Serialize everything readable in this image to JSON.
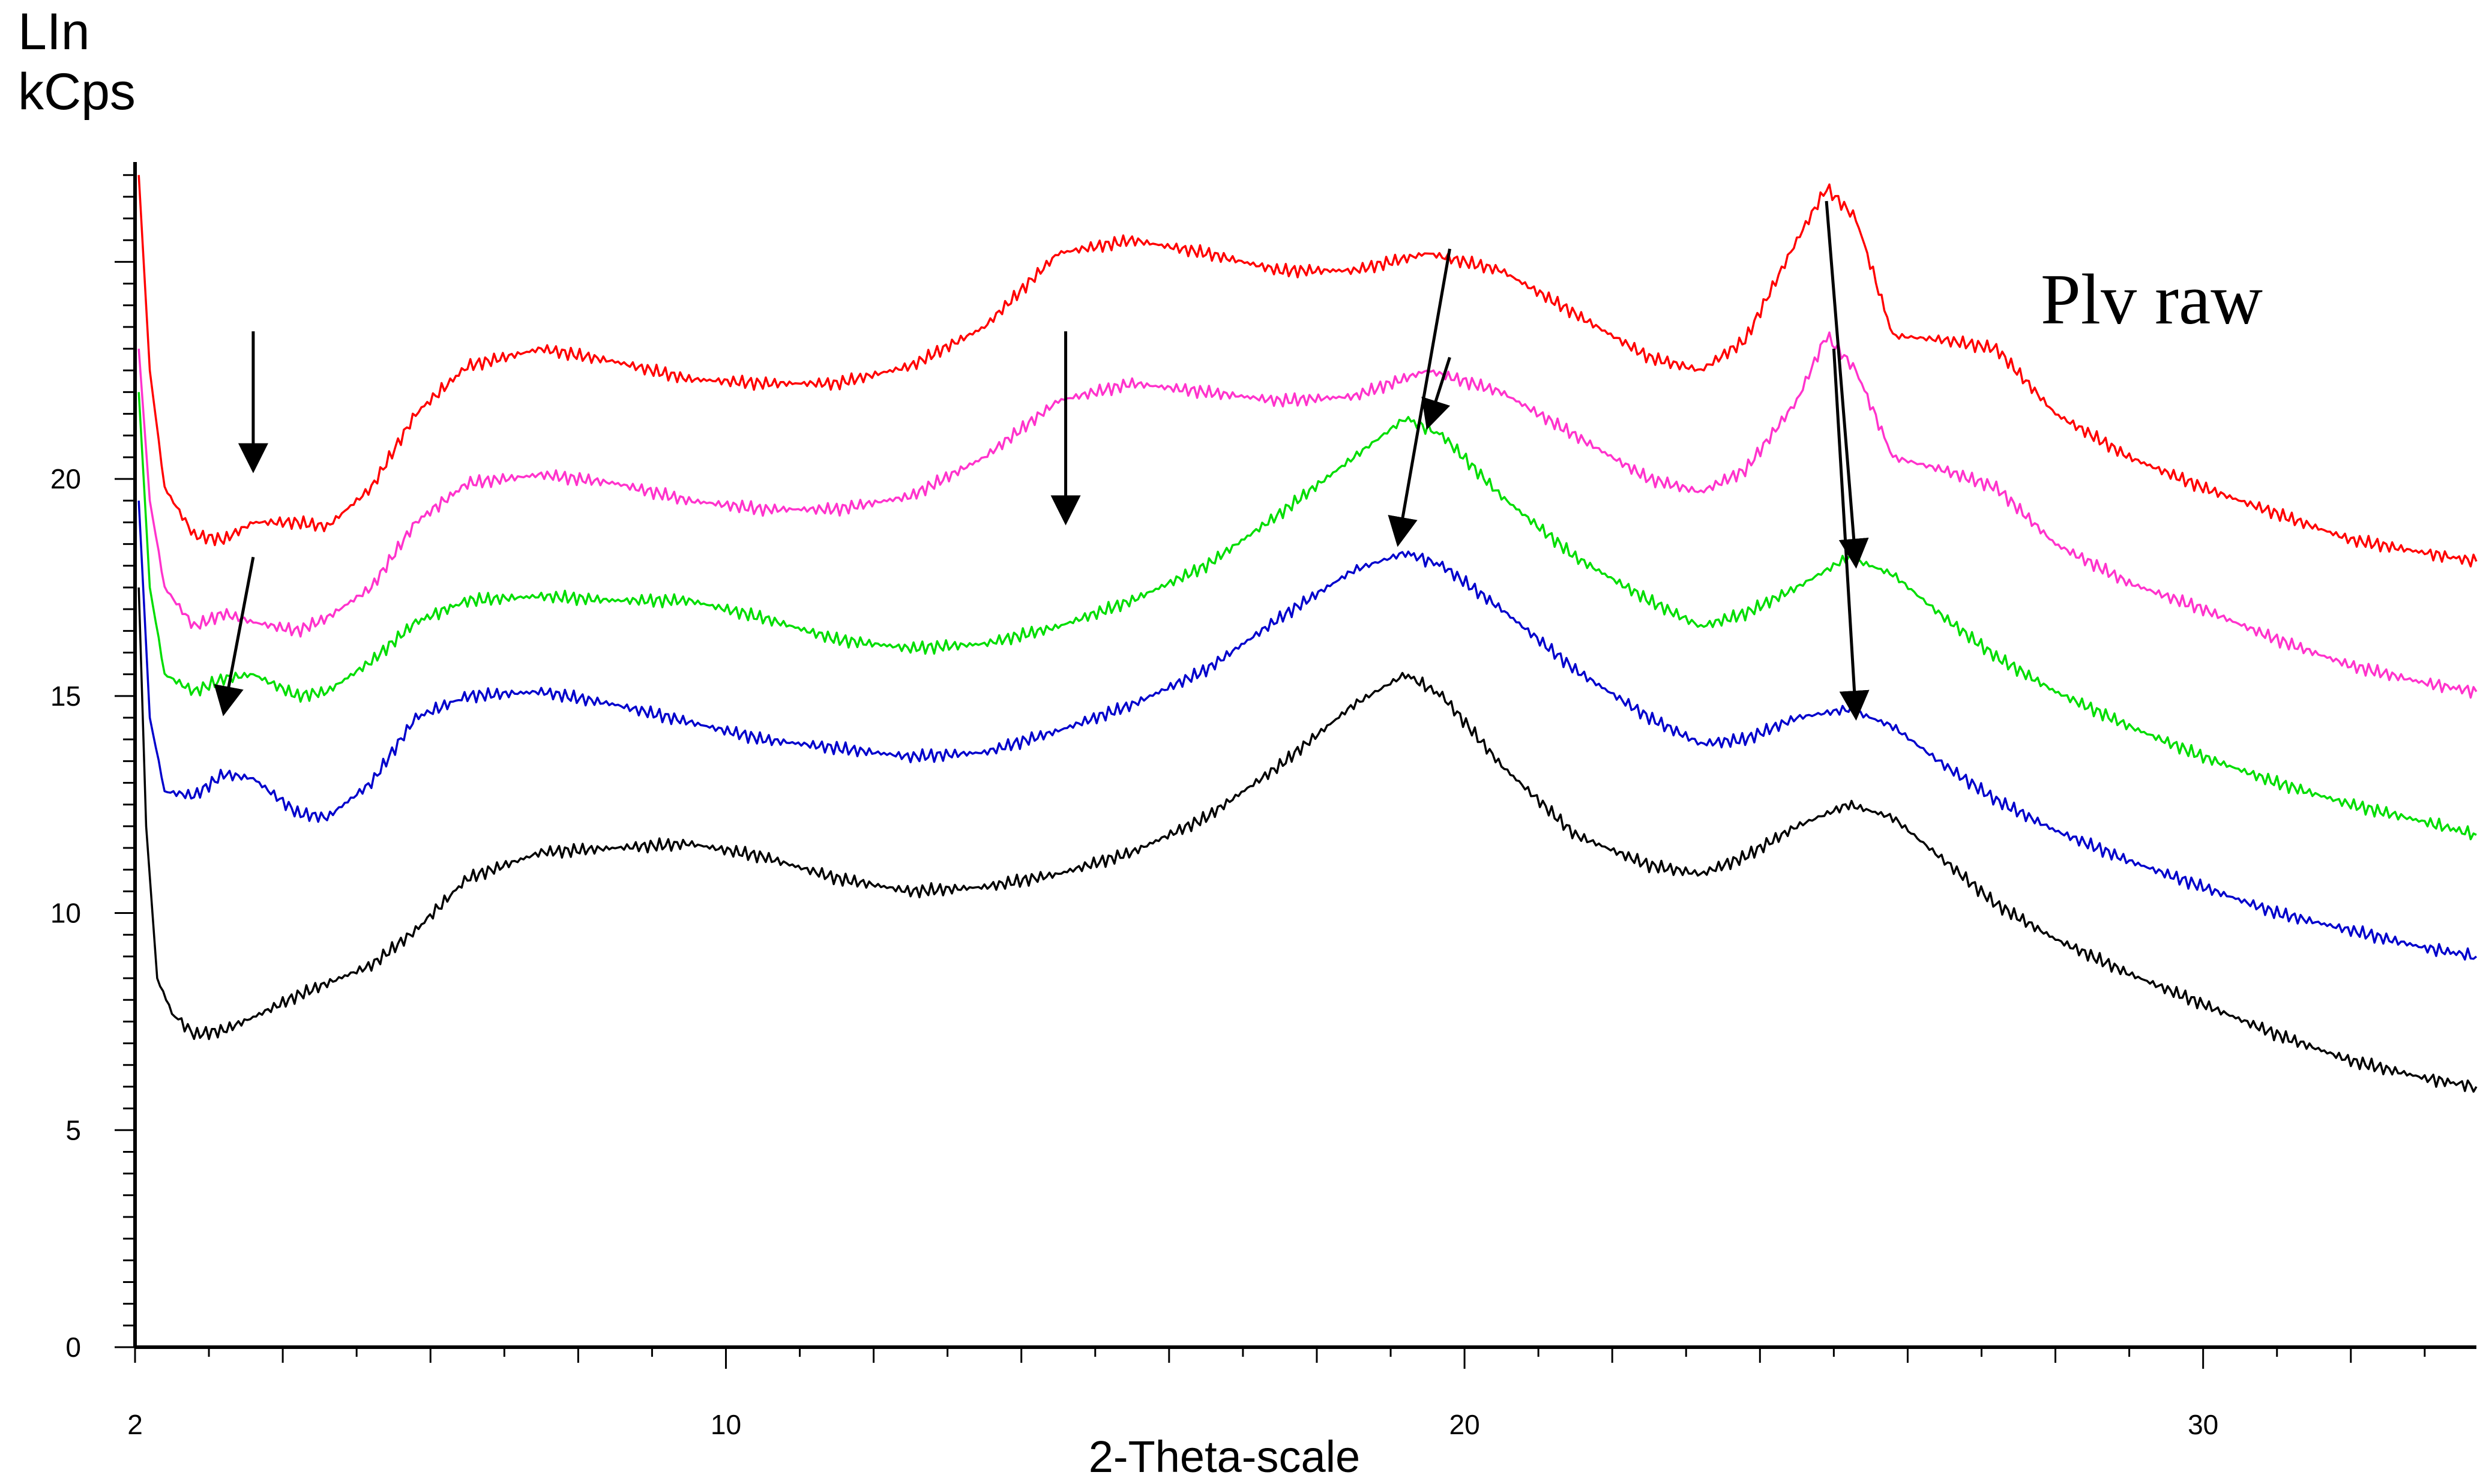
{
  "chart_data": {
    "type": "line",
    "ylabel": [
      "LIn",
      "kCps"
    ],
    "xlabel": "2-Theta-scale",
    "annotation": "Plv raw",
    "xlim": [
      2,
      33.7
    ],
    "ylim": [
      0,
      27.3
    ],
    "xticks": [
      2,
      10,
      20,
      30
    ],
    "yticks": [
      0,
      5,
      10,
      15,
      20
    ],
    "series": [
      {
        "color": "#ff0000",
        "points": [
          [
            2.05,
            27.0
          ],
          [
            2.2,
            22.5
          ],
          [
            2.4,
            19.8
          ],
          [
            2.8,
            18.7
          ],
          [
            3.2,
            18.6
          ],
          [
            3.6,
            19.0
          ],
          [
            4.2,
            19.0
          ],
          [
            4.6,
            18.9
          ],
          [
            5.2,
            19.8
          ],
          [
            5.8,
            21.5
          ],
          [
            6.5,
            22.6
          ],
          [
            7.5,
            23.0
          ],
          [
            8.5,
            22.7
          ],
          [
            9.5,
            22.3
          ],
          [
            10.5,
            22.2
          ],
          [
            11.5,
            22.2
          ],
          [
            12.5,
            22.6
          ],
          [
            13.5,
            23.5
          ],
          [
            14.5,
            25.2
          ],
          [
            15.5,
            25.5
          ],
          [
            16.5,
            25.2
          ],
          [
            17.5,
            24.8
          ],
          [
            18.5,
            24.8
          ],
          [
            19.5,
            25.2
          ],
          [
            20.5,
            24.8
          ],
          [
            21.5,
            23.8
          ],
          [
            22.5,
            22.8
          ],
          [
            23.2,
            22.5
          ],
          [
            23.8,
            23.2
          ],
          [
            24.5,
            25.5
          ],
          [
            24.9,
            26.7
          ],
          [
            25.3,
            26.0
          ],
          [
            25.8,
            23.3
          ],
          [
            26.5,
            23.2
          ],
          [
            27.2,
            23.0
          ],
          [
            28.0,
            21.5
          ],
          [
            29.0,
            20.5
          ],
          [
            30.0,
            19.8
          ],
          [
            31.0,
            19.2
          ],
          [
            32.0,
            18.6
          ],
          [
            33.0,
            18.3
          ],
          [
            33.7,
            18.1
          ]
        ]
      },
      {
        "color": "#ff33cc",
        "points": [
          [
            2.05,
            23.0
          ],
          [
            2.2,
            19.5
          ],
          [
            2.4,
            17.5
          ],
          [
            2.8,
            16.6
          ],
          [
            3.2,
            16.9
          ],
          [
            3.6,
            16.7
          ],
          [
            4.2,
            16.5
          ],
          [
            4.6,
            16.8
          ],
          [
            5.2,
            17.5
          ],
          [
            5.8,
            19.0
          ],
          [
            6.5,
            19.9
          ],
          [
            7.5,
            20.1
          ],
          [
            8.5,
            19.9
          ],
          [
            9.5,
            19.5
          ],
          [
            10.5,
            19.3
          ],
          [
            11.5,
            19.3
          ],
          [
            12.5,
            19.6
          ],
          [
            13.5,
            20.5
          ],
          [
            14.5,
            21.8
          ],
          [
            15.5,
            22.2
          ],
          [
            16.5,
            22.0
          ],
          [
            17.5,
            21.8
          ],
          [
            18.5,
            21.9
          ],
          [
            19.5,
            22.5
          ],
          [
            20.5,
            22.0
          ],
          [
            21.5,
            21.0
          ],
          [
            22.5,
            20.0
          ],
          [
            23.2,
            19.7
          ],
          [
            23.8,
            20.2
          ],
          [
            24.5,
            21.8
          ],
          [
            24.9,
            23.3
          ],
          [
            25.3,
            22.5
          ],
          [
            25.8,
            20.5
          ],
          [
            26.5,
            20.2
          ],
          [
            27.2,
            19.8
          ],
          [
            28.0,
            18.5
          ],
          [
            29.0,
            17.6
          ],
          [
            30.0,
            17.0
          ],
          [
            31.0,
            16.3
          ],
          [
            32.0,
            15.7
          ],
          [
            33.0,
            15.3
          ],
          [
            33.7,
            15.1
          ]
        ]
      },
      {
        "color": "#00dd00",
        "points": [
          [
            2.05,
            22.0
          ],
          [
            2.2,
            17.5
          ],
          [
            2.4,
            15.5
          ],
          [
            2.8,
            15.1
          ],
          [
            3.2,
            15.4
          ],
          [
            3.6,
            15.5
          ],
          [
            4.2,
            15.0
          ],
          [
            4.6,
            15.1
          ],
          [
            5.2,
            15.8
          ],
          [
            5.8,
            16.7
          ],
          [
            6.5,
            17.2
          ],
          [
            7.5,
            17.3
          ],
          [
            8.5,
            17.2
          ],
          [
            9.5,
            17.2
          ],
          [
            10.5,
            16.8
          ],
          [
            11.5,
            16.3
          ],
          [
            12.5,
            16.1
          ],
          [
            13.5,
            16.2
          ],
          [
            14.5,
            16.6
          ],
          [
            15.5,
            17.2
          ],
          [
            16.5,
            18.0
          ],
          [
            17.5,
            19.2
          ],
          [
            18.5,
            20.5
          ],
          [
            19.2,
            21.4
          ],
          [
            19.7,
            21.0
          ],
          [
            20.5,
            19.6
          ],
          [
            21.5,
            18.2
          ],
          [
            22.5,
            17.2
          ],
          [
            23.2,
            16.6
          ],
          [
            23.8,
            16.9
          ],
          [
            24.5,
            17.5
          ],
          [
            25.2,
            18.2
          ],
          [
            25.8,
            17.8
          ],
          [
            26.5,
            16.8
          ],
          [
            27.2,
            15.9
          ],
          [
            28.0,
            15.1
          ],
          [
            29.0,
            14.3
          ],
          [
            30.0,
            13.6
          ],
          [
            31.0,
            13.0
          ],
          [
            32.0,
            12.5
          ],
          [
            33.0,
            12.1
          ],
          [
            33.7,
            11.8
          ]
        ]
      },
      {
        "color": "#0000cc",
        "points": [
          [
            2.05,
            19.5
          ],
          [
            2.2,
            14.5
          ],
          [
            2.4,
            12.8
          ],
          [
            2.8,
            12.7
          ],
          [
            3.2,
            13.2
          ],
          [
            3.6,
            13.1
          ],
          [
            4.2,
            12.3
          ],
          [
            4.6,
            12.2
          ],
          [
            5.2,
            13.0
          ],
          [
            5.8,
            14.5
          ],
          [
            6.5,
            15.0
          ],
          [
            7.5,
            15.1
          ],
          [
            8.5,
            14.8
          ],
          [
            9.5,
            14.4
          ],
          [
            10.5,
            14.0
          ],
          [
            11.5,
            13.8
          ],
          [
            12.5,
            13.6
          ],
          [
            13.5,
            13.7
          ],
          [
            14.5,
            14.2
          ],
          [
            15.5,
            14.8
          ],
          [
            16.5,
            15.6
          ],
          [
            17.5,
            16.8
          ],
          [
            18.5,
            17.9
          ],
          [
            19.2,
            18.3
          ],
          [
            19.7,
            18.0
          ],
          [
            20.5,
            17.0
          ],
          [
            21.5,
            15.6
          ],
          [
            22.5,
            14.5
          ],
          [
            23.2,
            13.9
          ],
          [
            23.8,
            14.0
          ],
          [
            24.5,
            14.5
          ],
          [
            25.2,
            14.7
          ],
          [
            25.8,
            14.3
          ],
          [
            26.5,
            13.4
          ],
          [
            27.2,
            12.6
          ],
          [
            28.0,
            11.9
          ],
          [
            29.0,
            11.2
          ],
          [
            30.0,
            10.6
          ],
          [
            31.0,
            10.0
          ],
          [
            32.0,
            9.6
          ],
          [
            33.0,
            9.2
          ],
          [
            33.7,
            9.0
          ]
        ]
      },
      {
        "color": "#000000",
        "points": [
          [
            2.05,
            17.5
          ],
          [
            2.15,
            12.0
          ],
          [
            2.3,
            8.5
          ],
          [
            2.5,
            7.7
          ],
          [
            2.8,
            7.2
          ],
          [
            3.2,
            7.3
          ],
          [
            3.6,
            7.6
          ],
          [
            4.2,
            8.1
          ],
          [
            5.2,
            8.8
          ],
          [
            5.8,
            9.6
          ],
          [
            6.5,
            10.8
          ],
          [
            7.5,
            11.4
          ],
          [
            8.5,
            11.5
          ],
          [
            9.5,
            11.6
          ],
          [
            10.5,
            11.3
          ],
          [
            11.5,
            10.8
          ],
          [
            12.5,
            10.5
          ],
          [
            13.5,
            10.6
          ],
          [
            14.5,
            10.9
          ],
          [
            15.5,
            11.4
          ],
          [
            16.5,
            12.2
          ],
          [
            17.5,
            13.4
          ],
          [
            18.5,
            14.8
          ],
          [
            19.2,
            15.5
          ],
          [
            19.7,
            15.0
          ],
          [
            20.5,
            13.4
          ],
          [
            21.5,
            11.8
          ],
          [
            22.5,
            11.1
          ],
          [
            23.2,
            10.9
          ],
          [
            23.8,
            11.3
          ],
          [
            24.5,
            12.0
          ],
          [
            25.2,
            12.5
          ],
          [
            25.8,
            12.2
          ],
          [
            26.5,
            11.2
          ],
          [
            27.2,
            10.2
          ],
          [
            28.0,
            9.4
          ],
          [
            29.0,
            8.6
          ],
          [
            30.0,
            7.9
          ],
          [
            31.0,
            7.2
          ],
          [
            32.0,
            6.6
          ],
          [
            33.0,
            6.2
          ],
          [
            33.7,
            6.0
          ]
        ]
      }
    ],
    "arrows": [
      {
        "from": [
          3.6,
          23.4
        ],
        "to": [
          3.6,
          20.2
        ]
      },
      {
        "from": [
          3.6,
          18.2
        ],
        "to": [
          3.2,
          14.6
        ]
      },
      {
        "from": [
          14.6,
          23.4
        ],
        "to": [
          14.6,
          19.0
        ]
      },
      {
        "from": [
          19.8,
          25.3
        ],
        "to": [
          19.1,
          18.5
        ]
      },
      {
        "from": [
          19.8,
          22.8
        ],
        "to": [
          19.5,
          21.2
        ]
      },
      {
        "from": [
          24.9,
          26.4
        ],
        "to": [
          25.3,
          18.0
        ]
      },
      {
        "from": [
          25.0,
          23.0
        ],
        "to": [
          25.3,
          14.5
        ]
      }
    ]
  }
}
